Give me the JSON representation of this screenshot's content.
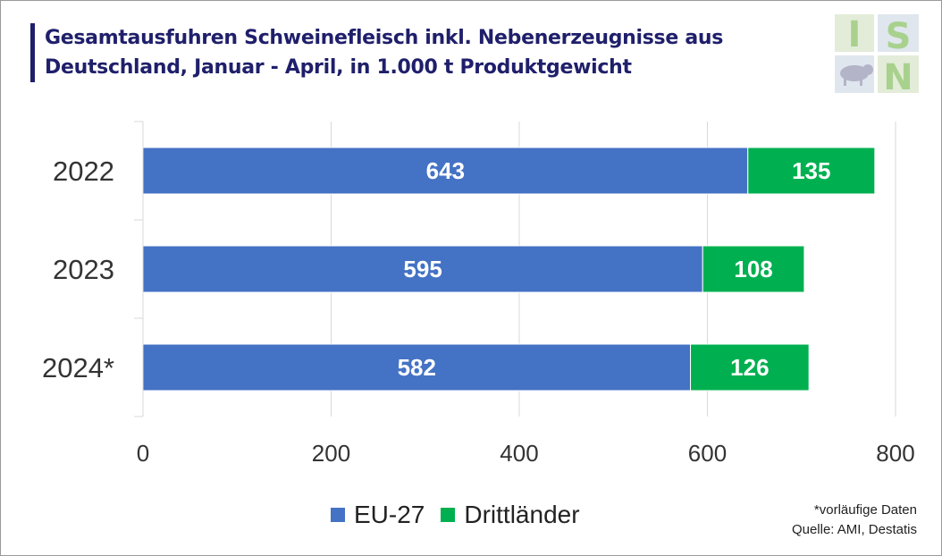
{
  "title_line1": "Gesamtausfuhren Schweinefleisch inkl. Nebenerzeugnisse aus",
  "title_line2": "Deutschland, Januar - April, in 1.000 t Produktgewicht",
  "logo_text": "ISN",
  "footnote": "*vorläufige Daten",
  "source": "Quelle: AMI, Destatis",
  "colors": {
    "eu": "#4472c4",
    "third": "#00b050",
    "title": "#1f1f6b"
  },
  "chart_data": {
    "type": "bar",
    "orientation": "horizontal",
    "stacked": true,
    "categories": [
      "2022",
      "2023",
      "2024*"
    ],
    "series": [
      {
        "name": "EU-27",
        "values": [
          643,
          595,
          582
        ]
      },
      {
        "name": "Drittländer",
        "values": [
          135,
          108,
          126
        ]
      }
    ],
    "xlim": [
      0,
      800
    ],
    "xticks": [
      "0",
      "200",
      "400",
      "600",
      "800"
    ],
    "data_labels": true,
    "grid": true,
    "legend": "bottom"
  }
}
